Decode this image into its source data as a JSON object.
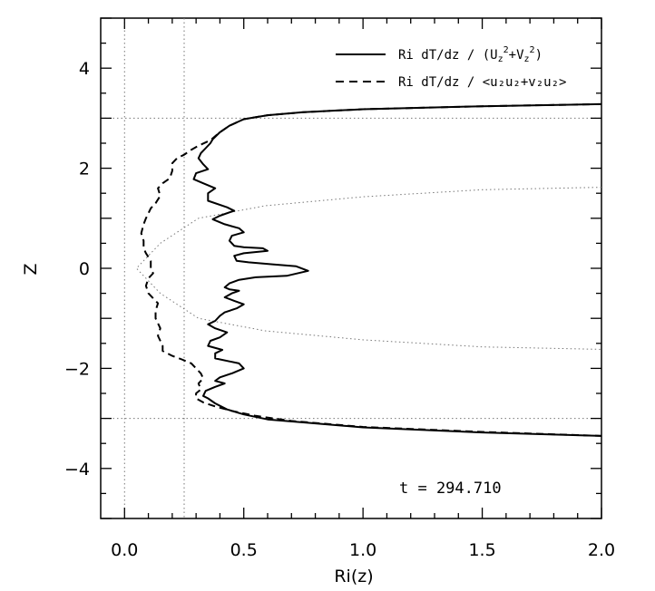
{
  "chart_data": {
    "type": "line",
    "title": "",
    "xlabel": "Ri(z)",
    "ylabel": "Z",
    "xlim": [
      -0.1,
      2.0
    ],
    "ylim": [
      -5,
      5
    ],
    "x_ticks": [
      0.0,
      0.5,
      1.0,
      1.5,
      2.0
    ],
    "x_tick_labels": [
      "0.0",
      "0.5",
      "1.0",
      "1.5",
      "2.0"
    ],
    "y_ticks": [
      -4,
      -2,
      0,
      2,
      4
    ],
    "y_tick_labels": [
      "−4",
      "−2",
      "0",
      "2",
      "4"
    ],
    "grid": false,
    "legend_position": "top-right",
    "legend": {
      "solid": {
        "base": "Ri dT/dz / (U",
        "sub1": "z",
        "mid": "+V",
        "sub2": "z",
        "end": ")"
      },
      "dashed": {
        "text": "Ri dT/dz / <u₂u₂+v₂u₂>"
      }
    },
    "annotation": "t = 294.710",
    "reference_lines": {
      "vertical": [
        0.0,
        0.25
      ],
      "horizontal": [
        3.0,
        -3.0
      ],
      "parabola": {
        "vertex_x": 0.05,
        "points": [
          [
            0.05,
            0.0
          ],
          [
            0.15,
            0.5
          ],
          [
            0.31,
            1.0
          ],
          [
            0.59,
            1.25
          ],
          [
            1.0,
            1.43
          ],
          [
            1.5,
            1.57
          ],
          [
            2.0,
            1.62
          ]
        ]
      }
    },
    "series": [
      {
        "name": "Ri dT/dz / (Uz2+Vz2)",
        "style": "solid",
        "points": [
          [
            2.0,
            3.28
          ],
          [
            1.5,
            3.24
          ],
          [
            1.0,
            3.18
          ],
          [
            0.75,
            3.12
          ],
          [
            0.6,
            3.06
          ],
          [
            0.5,
            2.98
          ],
          [
            0.44,
            2.85
          ],
          [
            0.4,
            2.72
          ],
          [
            0.37,
            2.58
          ],
          [
            0.36,
            2.5
          ],
          [
            0.34,
            2.4
          ],
          [
            0.32,
            2.3
          ],
          [
            0.31,
            2.2
          ],
          [
            0.33,
            2.08
          ],
          [
            0.35,
            1.98
          ],
          [
            0.3,
            1.9
          ],
          [
            0.29,
            1.78
          ],
          [
            0.33,
            1.7
          ],
          [
            0.38,
            1.6
          ],
          [
            0.35,
            1.5
          ],
          [
            0.35,
            1.35
          ],
          [
            0.43,
            1.22
          ],
          [
            0.46,
            1.15
          ],
          [
            0.4,
            1.05
          ],
          [
            0.37,
            0.98
          ],
          [
            0.42,
            0.88
          ],
          [
            0.48,
            0.8
          ],
          [
            0.5,
            0.72
          ],
          [
            0.45,
            0.65
          ],
          [
            0.44,
            0.55
          ],
          [
            0.46,
            0.45
          ],
          [
            0.5,
            0.42
          ],
          [
            0.58,
            0.4
          ],
          [
            0.6,
            0.35
          ],
          [
            0.5,
            0.3
          ],
          [
            0.46,
            0.25
          ],
          [
            0.47,
            0.15
          ],
          [
            0.52,
            0.12
          ],
          [
            0.62,
            0.08
          ],
          [
            0.72,
            0.04
          ],
          [
            0.77,
            -0.05
          ],
          [
            0.68,
            -0.15
          ],
          [
            0.55,
            -0.18
          ],
          [
            0.48,
            -0.23
          ],
          [
            0.44,
            -0.3
          ],
          [
            0.42,
            -0.38
          ],
          [
            0.44,
            -0.42
          ],
          [
            0.48,
            -0.45
          ],
          [
            0.45,
            -0.5
          ],
          [
            0.42,
            -0.58
          ],
          [
            0.46,
            -0.65
          ],
          [
            0.5,
            -0.72
          ],
          [
            0.47,
            -0.8
          ],
          [
            0.42,
            -0.88
          ],
          [
            0.4,
            -0.95
          ],
          [
            0.38,
            -1.05
          ],
          [
            0.35,
            -1.12
          ],
          [
            0.38,
            -1.2
          ],
          [
            0.43,
            -1.28
          ],
          [
            0.4,
            -1.38
          ],
          [
            0.36,
            -1.45
          ],
          [
            0.35,
            -1.55
          ],
          [
            0.41,
            -1.63
          ],
          [
            0.38,
            -1.7
          ],
          [
            0.38,
            -1.8
          ],
          [
            0.48,
            -1.9
          ],
          [
            0.5,
            -2.0
          ],
          [
            0.45,
            -2.1
          ],
          [
            0.4,
            -2.18
          ],
          [
            0.38,
            -2.25
          ],
          [
            0.42,
            -2.3
          ],
          [
            0.38,
            -2.37
          ],
          [
            0.34,
            -2.45
          ],
          [
            0.33,
            -2.55
          ],
          [
            0.35,
            -2.6
          ],
          [
            0.38,
            -2.7
          ],
          [
            0.43,
            -2.82
          ],
          [
            0.5,
            -2.92
          ],
          [
            0.6,
            -3.02
          ],
          [
            0.75,
            -3.08
          ],
          [
            1.0,
            -3.18
          ],
          [
            1.5,
            -3.28
          ],
          [
            2.0,
            -3.35
          ]
        ]
      },
      {
        "name": "Ri dT/dz / <uzuz+vzuz>",
        "style": "dashed",
        "points": [
          [
            2.0,
            3.28
          ],
          [
            1.5,
            3.24
          ],
          [
            1.0,
            3.18
          ],
          [
            0.75,
            3.12
          ],
          [
            0.6,
            3.06
          ],
          [
            0.5,
            2.98
          ],
          [
            0.44,
            2.85
          ],
          [
            0.4,
            2.72
          ],
          [
            0.36,
            2.56
          ],
          [
            0.31,
            2.45
          ],
          [
            0.28,
            2.37
          ],
          [
            0.25,
            2.27
          ],
          [
            0.22,
            2.2
          ],
          [
            0.2,
            2.1
          ],
          [
            0.2,
            1.95
          ],
          [
            0.19,
            1.8
          ],
          [
            0.16,
            1.7
          ],
          [
            0.14,
            1.6
          ],
          [
            0.15,
            1.45
          ],
          [
            0.13,
            1.3
          ],
          [
            0.11,
            1.2
          ],
          [
            0.1,
            1.1
          ],
          [
            0.09,
            1.0
          ],
          [
            0.08,
            0.88
          ],
          [
            0.07,
            0.7
          ],
          [
            0.08,
            0.55
          ],
          [
            0.08,
            0.4
          ],
          [
            0.09,
            0.3
          ],
          [
            0.11,
            0.15
          ],
          [
            0.11,
            0.0
          ],
          [
            0.12,
            -0.1
          ],
          [
            0.1,
            -0.2
          ],
          [
            0.09,
            -0.35
          ],
          [
            0.1,
            -0.5
          ],
          [
            0.12,
            -0.6
          ],
          [
            0.14,
            -0.7
          ],
          [
            0.13,
            -0.85
          ],
          [
            0.13,
            -1.0
          ],
          [
            0.14,
            -1.1
          ],
          [
            0.15,
            -1.2
          ],
          [
            0.14,
            -1.35
          ],
          [
            0.15,
            -1.45
          ],
          [
            0.16,
            -1.55
          ],
          [
            0.16,
            -1.65
          ],
          [
            0.2,
            -1.75
          ],
          [
            0.24,
            -1.82
          ],
          [
            0.28,
            -1.9
          ],
          [
            0.3,
            -2.0
          ],
          [
            0.32,
            -2.1
          ],
          [
            0.33,
            -2.2
          ],
          [
            0.31,
            -2.3
          ],
          [
            0.32,
            -2.42
          ],
          [
            0.3,
            -2.5
          ],
          [
            0.3,
            -2.6
          ],
          [
            0.33,
            -2.68
          ],
          [
            0.38,
            -2.76
          ],
          [
            0.45,
            -2.85
          ],
          [
            0.55,
            -2.95
          ],
          [
            0.7,
            -3.05
          ],
          [
            1.0,
            -3.17
          ],
          [
            1.5,
            -3.27
          ],
          [
            2.0,
            -3.35
          ]
        ]
      }
    ]
  }
}
